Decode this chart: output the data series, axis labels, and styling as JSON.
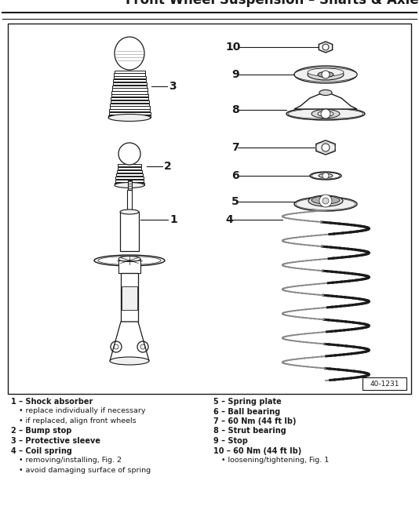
{
  "title": "Front Wheel Suspension – Shafts & Axle",
  "bg_color": "#ffffff",
  "diagram_ref": "40-1231",
  "title_fontsize": 12,
  "legend_items_left": [
    {
      "num": "1",
      "label": "Shock absorber",
      "bullets": [
        "replace individually if necessary",
        "if replaced, align front wheels"
      ]
    },
    {
      "num": "2",
      "label": "Bump stop",
      "bullets": []
    },
    {
      "num": "3",
      "label": "Protective sleeve",
      "bullets": []
    },
    {
      "num": "4",
      "label": "Coil spring",
      "bullets": [
        "removing/installing, Fig. 2",
        "avoid damaging surface of spring"
      ]
    }
  ],
  "legend_items_right": [
    {
      "num": "5",
      "label": "Spring plate",
      "bullets": []
    },
    {
      "num": "6",
      "label": "Ball bearing",
      "bullets": []
    },
    {
      "num": "7",
      "label": "60 Nm (44 ft lb)",
      "bullets": []
    },
    {
      "num": "8",
      "label": "Strut bearing",
      "bullets": []
    },
    {
      "num": "9",
      "label": "Stop",
      "bullets": []
    },
    {
      "num": "10",
      "label": "60 Nm (44 ft lb)",
      "bullets": [
        "loosening/tightening, Fig. 1"
      ]
    }
  ],
  "line_color": "#1a1a1a",
  "fill_white": "#ffffff",
  "fill_light": "#f0f0f0",
  "fill_mid": "#d8d8d8",
  "fill_dark": "#b0b0b0"
}
